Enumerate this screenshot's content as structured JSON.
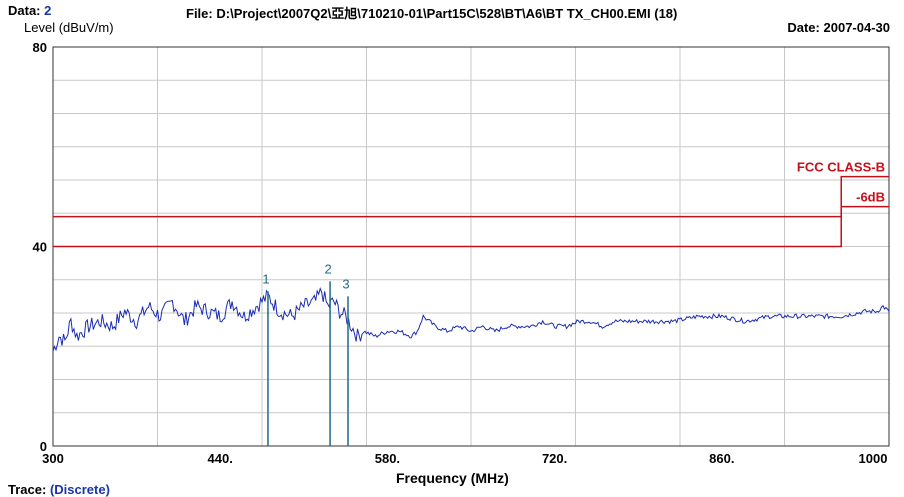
{
  "header": {
    "data_label": "Data:",
    "data_value": "2",
    "file_label": "File:",
    "file_path": "D:\\Project\\2007Q2\\亞旭\\710210-01\\Part15C\\528\\BT\\A6\\BT TX_CH00.EMI",
    "file_index": "(18)",
    "date_label": "Date:",
    "date_value": "2007-04-30"
  },
  "footer": {
    "trace_label": "Trace:",
    "trace_value": "(Discrete)"
  },
  "colors": {
    "grid": "#c8c8c8",
    "frame": "#333333",
    "trace": "#1a2db0",
    "limit": "#c4101a",
    "marker": "#1f6a8a"
  },
  "chart_data": {
    "type": "line",
    "title": "",
    "xlabel": "Frequency (MHz)",
    "ylabel": "Level (dBuV/m)",
    "xlim": [
      300,
      1000
    ],
    "ylim": [
      0,
      80
    ],
    "x_ticks": [
      "300",
      "440.",
      "580.",
      "720.",
      "860.",
      "1000"
    ],
    "x_tick_values": [
      300,
      440,
      580,
      720,
      860,
      1000
    ],
    "y_ticks": [
      "0",
      "40",
      "80"
    ],
    "y_tick_values": [
      0,
      40,
      80
    ],
    "grid": true,
    "limits": [
      {
        "name": "FCC CLASS-B",
        "points": [
          [
            300,
            40
          ],
          [
            960,
            40
          ],
          [
            960,
            54
          ],
          [
            1000,
            54
          ]
        ]
      },
      {
        "name": "-6dB",
        "points": [
          [
            300,
            46
          ],
          [
            960,
            46
          ],
          [
            960,
            48
          ],
          [
            1000,
            48
          ]
        ]
      }
    ],
    "markers": [
      {
        "label": "1",
        "x": 480,
        "y": 31
      },
      {
        "label": "2",
        "x": 532,
        "y": 33
      },
      {
        "label": "3",
        "x": 547,
        "y": 30
      }
    ],
    "series": [
      {
        "x": [
          300,
          305,
          310,
          315,
          320,
          330,
          340,
          350,
          360,
          370,
          380,
          390,
          400,
          410,
          420,
          430,
          440,
          450,
          460,
          470,
          480,
          490,
          500,
          510,
          520,
          525,
          530,
          535,
          540,
          545,
          550,
          555,
          560,
          570,
          580,
          590,
          600,
          605,
          610,
          620,
          630,
          640,
          650,
          660,
          670,
          680,
          690,
          700,
          710,
          720,
          730,
          740,
          750,
          760,
          770,
          780,
          790,
          800,
          820,
          840,
          860,
          880,
          900,
          920,
          940,
          960,
          980,
          990,
          995,
          1000
        ],
        "y": [
          19,
          22,
          21,
          25,
          22,
          24,
          25,
          24,
          27,
          25,
          28,
          26,
          29,
          25,
          28,
          27,
          26,
          29,
          26,
          28,
          30,
          27,
          26,
          28,
          29,
          31,
          28,
          29,
          27,
          26,
          24,
          22,
          23,
          22,
          23,
          23,
          22,
          23,
          26,
          24,
          23,
          24,
          23,
          24,
          23,
          24,
          24,
          24,
          25,
          24,
          24,
          25,
          25,
          24,
          25,
          25,
          25,
          25,
          25,
          26,
          26,
          25,
          26,
          26,
          26,
          26,
          27,
          27,
          28,
          27
        ]
      }
    ]
  }
}
